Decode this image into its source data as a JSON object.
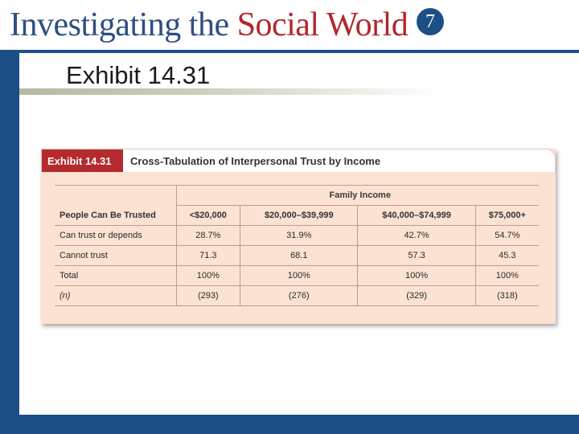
{
  "header": {
    "brand_part1": "Investigating the ",
    "brand_part2": "Social World",
    "edition": "7"
  },
  "slide": {
    "title": "Exhibit 14.31"
  },
  "exhibit": {
    "badge": "Exhibit 14.31",
    "caption": "Cross-Tabulation of Interpersonal Trust by Income",
    "table": {
      "spanner": "Family Income",
      "row_header": "People Can Be Trusted",
      "columns": [
        "<$20,000",
        "$20,000–$39,999",
        "$40,000–$74,999",
        "$75,000+"
      ],
      "rows": [
        {
          "label": "Can trust or depends",
          "values": [
            "28.7%",
            "31.9%",
            "42.7%",
            "54.7%"
          ]
        },
        {
          "label": "Cannot trust",
          "values": [
            "71.3",
            "68.1",
            "57.3",
            "45.3"
          ]
        },
        {
          "label": "Total",
          "values": [
            "100%",
            "100%",
            "100%",
            "100%"
          ]
        },
        {
          "label": "(n)",
          "values": [
            "(293)",
            "(276)",
            "(329)",
            "(318)"
          ]
        }
      ]
    }
  },
  "colors": {
    "brand_blue": "#2f4f80",
    "brand_red": "#b3262e",
    "frame_blue": "#1c4e84",
    "badge_red": "#b42a2f",
    "table_bg": "#fbe2d2"
  }
}
